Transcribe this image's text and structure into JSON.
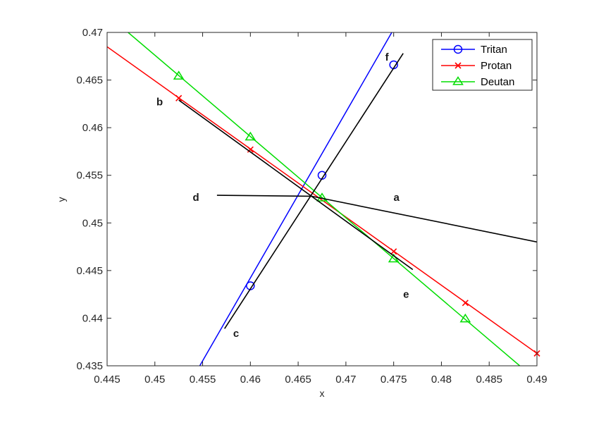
{
  "chart_data": {
    "type": "line",
    "xlabel": "x",
    "ylabel": "y",
    "xlim": [
      0.445,
      0.49
    ],
    "ylim": [
      0.435,
      0.47
    ],
    "x_ticks": [
      "0.445",
      "0.45",
      "0.455",
      "0.46",
      "0.465",
      "0.47",
      "0.475",
      "0.48",
      "0.485",
      "0.49"
    ],
    "y_ticks": [
      "0.435",
      "0.44",
      "0.445",
      "0.45",
      "0.455",
      "0.46",
      "0.465",
      "0.47"
    ],
    "grid": false,
    "legend_position": "top-right",
    "series": [
      {
        "name": "Tritan",
        "color": "#0000ff",
        "marker": "circle",
        "line": [
          [
            0.4547,
            0.435
          ],
          [
            0.4748,
            0.47
          ]
        ],
        "markers": [
          [
            0.46,
            0.4434
          ],
          [
            0.4675,
            0.455
          ],
          [
            0.475,
            0.4666
          ]
        ]
      },
      {
        "name": "Protan",
        "color": "#ff0000",
        "marker": "x",
        "line": [
          [
            0.445,
            0.4685
          ],
          [
            0.49,
            0.4363
          ]
        ],
        "markers": [
          [
            0.4525,
            0.4631
          ],
          [
            0.46,
            0.4577
          ],
          [
            0.475,
            0.447
          ],
          [
            0.4825,
            0.4416
          ],
          [
            0.49,
            0.4363
          ]
        ]
      },
      {
        "name": "Deutan",
        "color": "#00dd00",
        "marker": "triangle",
        "line": [
          [
            0.4472,
            0.47
          ],
          [
            0.4882,
            0.435
          ]
        ],
        "markers": [
          [
            0.4525,
            0.4654
          ],
          [
            0.46,
            0.459
          ],
          [
            0.4675,
            0.4526
          ],
          [
            0.475,
            0.4462
          ],
          [
            0.4825,
            0.4399
          ]
        ]
      }
    ],
    "reference_lines": [
      {
        "color": "#000000",
        "points": [
          [
            0.4565,
            0.4529
          ],
          [
            0.4664,
            0.4528
          ],
          [
            0.49,
            0.448
          ]
        ]
      },
      {
        "color": "#000000",
        "points": [
          [
            0.4525,
            0.4629
          ],
          [
            0.477,
            0.4451
          ]
        ]
      },
      {
        "color": "#000000",
        "points": [
          [
            0.4573,
            0.4389
          ],
          [
            0.476,
            0.4678
          ]
        ]
      }
    ],
    "annotations": [
      {
        "text": "a",
        "x": 0.4753,
        "y": 0.4527
      },
      {
        "text": "b",
        "x": 0.4505,
        "y": 0.4627
      },
      {
        "text": "c",
        "x": 0.4585,
        "y": 0.4384
      },
      {
        "text": "d",
        "x": 0.4543,
        "y": 0.4527
      },
      {
        "text": "e",
        "x": 0.4763,
        "y": 0.4425
      },
      {
        "text": "f",
        "x": 0.4743,
        "y": 0.4674
      }
    ]
  }
}
